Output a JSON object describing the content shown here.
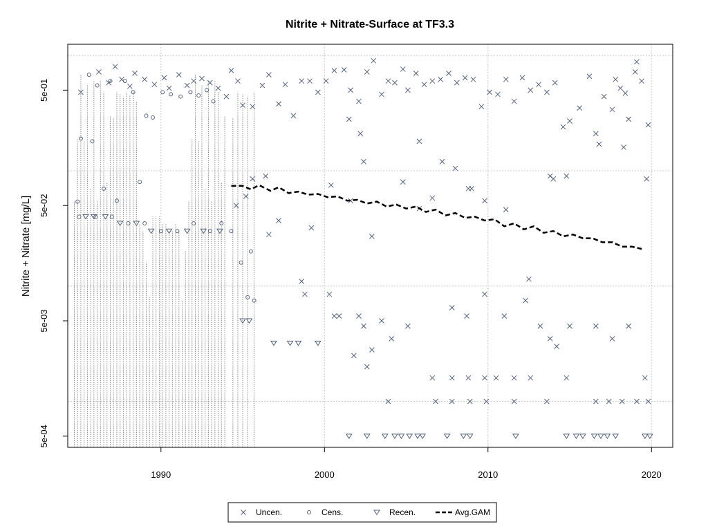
{
  "chart_data": {
    "type": "scatter",
    "title": "Nitrite + Nitrate-Surface at TF3.3",
    "xlabel": "",
    "ylabel": "Nitrite + Nitrate [mg/L]",
    "xlim": [
      1984.3,
      2021.3
    ],
    "ylim": [
      0.0004,
      1.25
    ],
    "y_scale": "log",
    "grid": true,
    "legend_position": "bottom-center",
    "x_ticks": [
      {
        "value": 1990,
        "label": "1990"
      },
      {
        "value": 2000,
        "label": "2000"
      },
      {
        "value": 2010,
        "label": "2010"
      },
      {
        "value": 2020,
        "label": "2020"
      }
    ],
    "y_ticks": [
      {
        "value": 0.0005,
        "label": "5e-04"
      },
      {
        "value": 0.005,
        "label": "5e-03"
      },
      {
        "value": 0.05,
        "label": "5e-02"
      },
      {
        "value": 0.5,
        "label": "5e-01"
      }
    ],
    "y_gridlines": [
      0.001,
      0.01,
      0.1,
      1
    ],
    "x_gridlines": [
      1990,
      2000,
      2010,
      2020
    ],
    "colors": {
      "points": "#55627a",
      "gam": "#000000",
      "grid": "#c8c8c8",
      "censored_line": "#8a8a8a"
    },
    "legend": [
      {
        "name": "Uncen.",
        "marker": "cross"
      },
      {
        "name": "Cens.",
        "marker": "circle"
      },
      {
        "name": "Recen.",
        "marker": "triangle-down"
      },
      {
        "name": "Avg.GAM",
        "marker": "dashed-line"
      }
    ],
    "series": [
      {
        "name": "Uncen.",
        "marker": "cross",
        "points": [
          [
            1985.1,
            0.48
          ],
          [
            1986.2,
            0.72
          ],
          [
            1986.8,
            0.58
          ],
          [
            1987.2,
            0.8
          ],
          [
            1987.6,
            0.62
          ],
          [
            1988.1,
            0.54
          ],
          [
            1988.4,
            0.7
          ],
          [
            1989.0,
            0.62
          ],
          [
            1989.6,
            0.56
          ],
          [
            1990.2,
            0.64
          ],
          [
            1990.5,
            0.52
          ],
          [
            1991.1,
            0.68
          ],
          [
            1991.6,
            0.55
          ],
          [
            1992.0,
            0.6
          ],
          [
            1992.5,
            0.63
          ],
          [
            1993.0,
            0.58
          ],
          [
            1993.5,
            0.52
          ],
          [
            1994.0,
            0.44
          ],
          [
            1994.3,
            0.74
          ],
          [
            1994.7,
            0.6
          ],
          [
            1995.0,
            0.37
          ],
          [
            1995.6,
            0.36
          ],
          [
            1996.2,
            0.55
          ],
          [
            1996.6,
            0.68
          ],
          [
            1997.2,
            0.38
          ],
          [
            1997.6,
            0.56
          ],
          [
            1998.1,
            0.3
          ],
          [
            1998.6,
            0.6
          ],
          [
            1999.1,
            0.6
          ],
          [
            1999.6,
            0.48
          ],
          [
            2000.1,
            0.6
          ],
          [
            2000.6,
            0.74
          ],
          [
            2001.2,
            0.75
          ],
          [
            2001.6,
            0.5
          ],
          [
            2002.1,
            0.4
          ],
          [
            2002.6,
            0.72
          ],
          [
            2003.0,
            0.9
          ],
          [
            2003.5,
            0.46
          ],
          [
            2003.9,
            0.6
          ],
          [
            2004.3,
            0.58
          ],
          [
            2004.8,
            0.76
          ],
          [
            2005.1,
            0.5
          ],
          [
            2005.6,
            0.7
          ],
          [
            2006.1,
            0.56
          ],
          [
            2006.6,
            0.6
          ],
          [
            2007.1,
            0.62
          ],
          [
            2007.6,
            0.7
          ],
          [
            2008.1,
            0.58
          ],
          [
            2008.6,
            0.64
          ],
          [
            2009.1,
            0.62
          ],
          [
            2009.6,
            0.36
          ],
          [
            2010.1,
            0.48
          ],
          [
            2010.6,
            0.46
          ],
          [
            2011.1,
            0.62
          ],
          [
            2011.6,
            0.4
          ],
          [
            2012.1,
            0.64
          ],
          [
            2012.6,
            0.5
          ],
          [
            2013.1,
            0.56
          ],
          [
            2013.6,
            0.48
          ],
          [
            2014.1,
            0.58
          ],
          [
            2014.6,
            0.24
          ],
          [
            2015.0,
            0.27
          ],
          [
            2015.6,
            0.35
          ],
          [
            2016.2,
            0.66
          ],
          [
            2016.6,
            0.21
          ],
          [
            2017.1,
            0.44
          ],
          [
            2017.6,
            0.34
          ],
          [
            2018.1,
            0.52
          ],
          [
            2018.6,
            0.28
          ],
          [
            2019.0,
            0.72
          ],
          [
            2019.4,
            0.6
          ],
          [
            2019.8,
            0.25
          ],
          [
            2017.8,
            0.62
          ],
          [
            2018.4,
            0.47
          ],
          [
            2019.1,
            0.88
          ],
          [
            2001.5,
            0.28
          ],
          [
            2002.2,
            0.21
          ],
          [
            2005.8,
            0.18
          ],
          [
            2007.2,
            0.12
          ],
          [
            2008.8,
            0.07
          ],
          [
            2009.0,
            0.07
          ],
          [
            2013.8,
            0.09
          ],
          [
            2014.0,
            0.085
          ],
          [
            2014.8,
            0.09
          ],
          [
            2016.8,
            0.17
          ],
          [
            2018.3,
            0.16
          ],
          [
            2019.7,
            0.085
          ],
          [
            1994.6,
            0.05
          ],
          [
            1995.2,
            0.06
          ],
          [
            1995.6,
            0.085
          ],
          [
            1996.4,
            0.09
          ],
          [
            1997.2,
            0.037
          ],
          [
            1999.2,
            0.032
          ],
          [
            2000.4,
            0.075
          ],
          [
            2001.6,
            0.055
          ],
          [
            2002.4,
            0.12
          ],
          [
            2002.9,
            0.027
          ],
          [
            2004.8,
            0.08
          ],
          [
            2005.8,
            0.047
          ],
          [
            2006.6,
            0.058
          ],
          [
            2008.0,
            0.105
          ],
          [
            2009.8,
            0.055
          ],
          [
            2011.1,
            0.046
          ],
          [
            1996.6,
            0.028
          ],
          [
            1998.6,
            0.011
          ],
          [
            1998.8,
            0.0085
          ],
          [
            2000.3,
            0.0085
          ],
          [
            2000.6,
            0.0055
          ],
          [
            2000.9,
            0.0055
          ],
          [
            2002.1,
            0.0055
          ],
          [
            2002.4,
            0.0045
          ],
          [
            2003.5,
            0.005
          ],
          [
            2005.1,
            0.0045
          ],
          [
            2007.8,
            0.0065
          ],
          [
            2008.7,
            0.0055
          ],
          [
            2009.8,
            0.0085
          ],
          [
            2011.0,
            0.0055
          ],
          [
            2012.3,
            0.0075
          ],
          [
            2012.5,
            0.0115
          ],
          [
            2013.2,
            0.0045
          ],
          [
            2013.8,
            0.0035
          ],
          [
            2014.2,
            0.003
          ],
          [
            2015.0,
            0.0045
          ],
          [
            2016.6,
            0.0045
          ],
          [
            2017.6,
            0.0035
          ],
          [
            2018.6,
            0.0045
          ],
          [
            2001.8,
            0.0025
          ],
          [
            2002.6,
            0.002
          ],
          [
            2002.9,
            0.0028
          ],
          [
            2004.1,
            0.0035
          ],
          [
            2006.6,
            0.0016
          ],
          [
            2007.8,
            0.0016
          ],
          [
            2008.8,
            0.0016
          ],
          [
            2009.8,
            0.0016
          ],
          [
            2010.5,
            0.0016
          ],
          [
            2011.6,
            0.0016
          ],
          [
            2012.6,
            0.0016
          ],
          [
            2014.8,
            0.0016
          ],
          [
            2019.6,
            0.0016
          ],
          [
            2003.9,
            0.001
          ],
          [
            2006.8,
            0.001
          ],
          [
            2007.8,
            0.001
          ],
          [
            2008.9,
            0.001
          ],
          [
            2009.9,
            0.001
          ],
          [
            2011.6,
            0.001
          ],
          [
            2013.6,
            0.001
          ],
          [
            2016.6,
            0.001
          ],
          [
            2017.4,
            0.001
          ],
          [
            2018.2,
            0.001
          ],
          [
            2019.1,
            0.001
          ],
          [
            2019.8,
            0.001
          ]
        ]
      },
      {
        "name": "Cens.",
        "marker": "circle",
        "points": [
          [
            1984.9,
            0.054
          ],
          [
            1985.1,
            0.19
          ],
          [
            1985.6,
            0.68
          ],
          [
            1985.8,
            0.18
          ],
          [
            1986.1,
            0.55
          ],
          [
            1986.5,
            0.07
          ],
          [
            1986.9,
            0.6
          ],
          [
            1987.3,
            0.055
          ],
          [
            1987.8,
            0.6
          ],
          [
            1988.3,
            0.48
          ],
          [
            1988.7,
            0.08
          ],
          [
            1989.1,
            0.3
          ],
          [
            1989.5,
            0.29
          ],
          [
            1990.1,
            0.48
          ],
          [
            1990.6,
            0.46
          ],
          [
            1991.2,
            0.44
          ],
          [
            1991.8,
            0.48
          ],
          [
            1992.3,
            0.45
          ],
          [
            1992.8,
            0.5
          ],
          [
            1993.2,
            0.4
          ],
          [
            1993.7,
            0.035
          ],
          [
            1994.3,
            0.03
          ],
          [
            1994.9,
            0.016
          ],
          [
            1995.3,
            0.008
          ],
          [
            1985.0,
            0.04
          ],
          [
            1986.0,
            0.04
          ],
          [
            1987.0,
            0.04
          ],
          [
            1988.0,
            0.035
          ],
          [
            1989.0,
            0.035
          ],
          [
            1990.0,
            0.03
          ],
          [
            1991.0,
            0.03
          ],
          [
            1992.0,
            0.035
          ],
          [
            1993.0,
            0.03
          ],
          [
            1995.7,
            0.0075
          ],
          [
            1995.5,
            0.02
          ]
        ]
      },
      {
        "name": "Recen.",
        "marker": "triangle-down",
        "points": [
          [
            1995.0,
            0.005
          ],
          [
            1995.4,
            0.005
          ],
          [
            1996.9,
            0.0032
          ],
          [
            1997.9,
            0.0032
          ],
          [
            1998.4,
            0.0032
          ],
          [
            1999.6,
            0.0032
          ],
          [
            2001.5,
            0.0005
          ],
          [
            2002.6,
            0.0005
          ],
          [
            2003.7,
            0.0005
          ],
          [
            2004.3,
            0.0005
          ],
          [
            2004.7,
            0.0005
          ],
          [
            2005.2,
            0.0005
          ],
          [
            2005.7,
            0.0005
          ],
          [
            2006.0,
            0.0005
          ],
          [
            2007.5,
            0.0005
          ],
          [
            2008.5,
            0.0005
          ],
          [
            2008.9,
            0.0005
          ],
          [
            2011.7,
            0.0005
          ],
          [
            2014.8,
            0.0005
          ],
          [
            2015.4,
            0.0005
          ],
          [
            2015.8,
            0.0005
          ],
          [
            2016.5,
            0.0005
          ],
          [
            2016.9,
            0.0005
          ],
          [
            2017.3,
            0.0005
          ],
          [
            2017.8,
            0.0005
          ],
          [
            2019.6,
            0.0005
          ],
          [
            2019.9,
            0.0005
          ],
          [
            1985.4,
            0.04
          ],
          [
            1985.9,
            0.04
          ],
          [
            1986.6,
            0.04
          ],
          [
            1987.5,
            0.035
          ],
          [
            1988.5,
            0.035
          ],
          [
            1989.4,
            0.03
          ],
          [
            1990.5,
            0.03
          ],
          [
            1991.6,
            0.03
          ],
          [
            1992.6,
            0.03
          ],
          [
            1993.6,
            0.03
          ]
        ]
      },
      {
        "name": "Avg.GAM",
        "marker": "dashed-line",
        "points": [
          [
            1994.3,
            0.074
          ],
          [
            1995.0,
            0.074
          ],
          [
            1995.5,
            0.069
          ],
          [
            1996.0,
            0.075
          ],
          [
            1996.7,
            0.067
          ],
          [
            1997.2,
            0.072
          ],
          [
            1997.8,
            0.064
          ],
          [
            1998.4,
            0.066
          ],
          [
            1999.0,
            0.062
          ],
          [
            1999.6,
            0.063
          ],
          [
            2000.2,
            0.059
          ],
          [
            2000.8,
            0.06
          ],
          [
            2001.4,
            0.055
          ],
          [
            2002.0,
            0.056
          ],
          [
            2002.6,
            0.052
          ],
          [
            2003.2,
            0.054
          ],
          [
            2003.8,
            0.049
          ],
          [
            2004.4,
            0.051
          ],
          [
            2005.0,
            0.047
          ],
          [
            2005.6,
            0.049
          ],
          [
            2006.2,
            0.044
          ],
          [
            2006.8,
            0.046
          ],
          [
            2007.4,
            0.041
          ],
          [
            2008.0,
            0.043
          ],
          [
            2008.6,
            0.039
          ],
          [
            2009.2,
            0.04
          ],
          [
            2009.8,
            0.037
          ],
          [
            2010.4,
            0.038
          ],
          [
            2011.0,
            0.033
          ],
          [
            2011.6,
            0.035
          ],
          [
            2012.2,
            0.031
          ],
          [
            2012.8,
            0.033
          ],
          [
            2013.4,
            0.029
          ],
          [
            2014.0,
            0.03
          ],
          [
            2014.6,
            0.027
          ],
          [
            2015.2,
            0.028
          ],
          [
            2015.8,
            0.026
          ],
          [
            2016.4,
            0.026
          ],
          [
            2017.0,
            0.024
          ],
          [
            2017.6,
            0.024
          ],
          [
            2018.2,
            0.022
          ],
          [
            2018.8,
            0.022
          ],
          [
            2019.4,
            0.021
          ]
        ]
      }
    ],
    "censored_interval_years": [
      1984.7,
      1984.9,
      1985.1,
      1985.3,
      1985.5,
      1985.7,
      1985.9,
      1986.1,
      1986.3,
      1986.5,
      1986.7,
      1986.9,
      1987.1,
      1987.3,
      1987.5,
      1987.7,
      1987.9,
      1988.1,
      1988.3,
      1988.5,
      1988.7,
      1988.9,
      1989.1,
      1989.3,
      1989.5,
      1989.7,
      1989.9,
      1990.1,
      1990.3,
      1990.5,
      1990.7,
      1990.9,
      1991.1,
      1991.3,
      1991.5,
      1991.7,
      1991.9,
      1992.1,
      1992.3,
      1992.5,
      1992.7,
      1992.9,
      1993.1,
      1993.3,
      1993.5,
      1993.7,
      1993.9,
      1994.4,
      1994.7,
      1995.0,
      1995.3,
      1995.7
    ]
  }
}
